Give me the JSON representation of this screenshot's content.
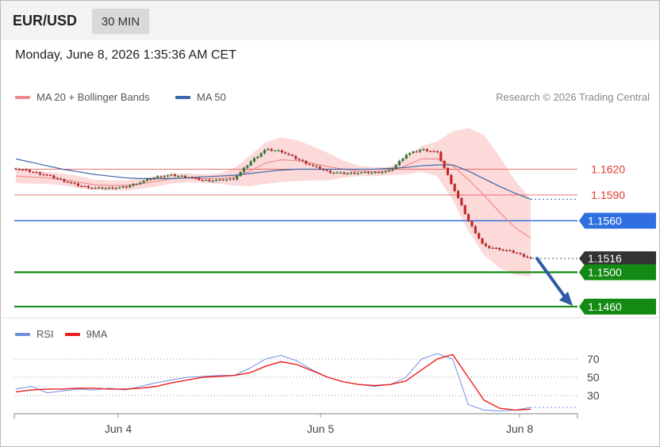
{
  "header": {
    "symbol": "EUR/USD",
    "timeframe": "30 MIN"
  },
  "datetime": "Monday, June 8, 2026 1:35:36 AM CET",
  "legend": {
    "ma20": {
      "label": "MA 20 + Bollinger Bands",
      "color": "#f08a8a"
    },
    "ma50": {
      "label": "MA 50",
      "color": "#3c67a8"
    }
  },
  "copyright": "Research © 2026 Trading Central",
  "rsi_legend": {
    "rsi": {
      "label": "RSI",
      "color": "#6f8fe0"
    },
    "ma9": {
      "label": "9MA",
      "color": "#ee1c1c"
    }
  },
  "colors": {
    "bullish": "#2f7d32",
    "bearish": "#c62828",
    "resistance": "#e53935",
    "pivot": "#2f6fe0",
    "support": "#138a13",
    "current": "#333333",
    "arrow": "#2e5aa6",
    "band": "#fbd4d4"
  },
  "chart_data": [
    {
      "type": "candlestick",
      "x_labels": [
        "Jun 4",
        "Jun 5",
        "Jun 8"
      ],
      "levels": [
        {
          "value": "1.1620",
          "role": "resistance"
        },
        {
          "value": "1.1590",
          "role": "resistance"
        },
        {
          "value": "1.1560",
          "role": "pivot"
        },
        {
          "value": "1.1516",
          "role": "current"
        },
        {
          "value": "1.1500",
          "role": "support"
        },
        {
          "value": "1.1460",
          "role": "support"
        }
      ],
      "close_path": [
        1.1621,
        1.1617,
        1.1613,
        1.1607,
        1.1601,
        1.1598,
        1.1598,
        1.1599,
        1.1605,
        1.1611,
        1.1613,
        1.1611,
        1.1607,
        1.1607,
        1.1609,
        1.1628,
        1.1643,
        1.1641,
        1.1632,
        1.1624,
        1.1617,
        1.1615,
        1.1616,
        1.1616,
        1.1618,
        1.1637,
        1.1643,
        1.164,
        1.16,
        1.156,
        1.153,
        1.1527,
        1.1523,
        1.1516
      ],
      "ma20": [
        1.1612,
        1.1611,
        1.161,
        1.1608,
        1.1605,
        1.1602,
        1.1601,
        1.1601,
        1.1603,
        1.1606,
        1.1609,
        1.161,
        1.1609,
        1.1609,
        1.1611,
        1.1618,
        1.1627,
        1.1631,
        1.163,
        1.1627,
        1.1623,
        1.162,
        1.1618,
        1.1617,
        1.1618,
        1.1624,
        1.1632,
        1.1632,
        1.1624,
        1.1608,
        1.159,
        1.157,
        1.1552,
        1.154
      ],
      "ma50": [
        1.1632,
        1.1628,
        1.1624,
        1.162,
        1.1617,
        1.1614,
        1.1612,
        1.161,
        1.1609,
        1.1609,
        1.1609,
        1.161,
        1.1611,
        1.1612,
        1.1613,
        1.1615,
        1.1617,
        1.1619,
        1.162,
        1.162,
        1.162,
        1.162,
        1.162,
        1.162,
        1.1621,
        1.1622,
        1.1624,
        1.1625,
        1.1625,
        1.1618,
        1.1609,
        1.16,
        1.1592,
        1.1585
      ],
      "band_half_width": [
        0.0008,
        0.0008,
        0.0007,
        0.0007,
        0.0007,
        0.0006,
        0.0006,
        0.0006,
        0.0006,
        0.0006,
        0.0006,
        0.0005,
        0.0005,
        0.0006,
        0.001,
        0.0018,
        0.0024,
        0.0026,
        0.0024,
        0.002,
        0.0016,
        0.001,
        0.0006,
        0.0005,
        0.0005,
        0.001,
        0.0015,
        0.002,
        0.004,
        0.006,
        0.007,
        0.0065,
        0.0055,
        0.0045
      ],
      "forecast_arrow": {
        "from": 1.1516,
        "to": 1.146
      }
    },
    {
      "type": "line",
      "y_ticks": [
        "70",
        "50",
        "30"
      ],
      "rsi": [
        37,
        40,
        33,
        35,
        37,
        36,
        38,
        36,
        40,
        44,
        47,
        50,
        51,
        52,
        52,
        60,
        70,
        74,
        68,
        58,
        50,
        45,
        42,
        40,
        42,
        50,
        70,
        76,
        70,
        20,
        14,
        13,
        14,
        17
      ],
      "ma9": [
        34,
        36,
        37,
        37,
        38,
        38,
        37,
        37,
        38,
        40,
        44,
        47,
        50,
        51,
        52,
        55,
        62,
        67,
        64,
        57,
        50,
        45,
        42,
        41,
        42,
        46,
        58,
        70,
        75,
        50,
        25,
        16,
        14,
        15
      ]
    }
  ]
}
